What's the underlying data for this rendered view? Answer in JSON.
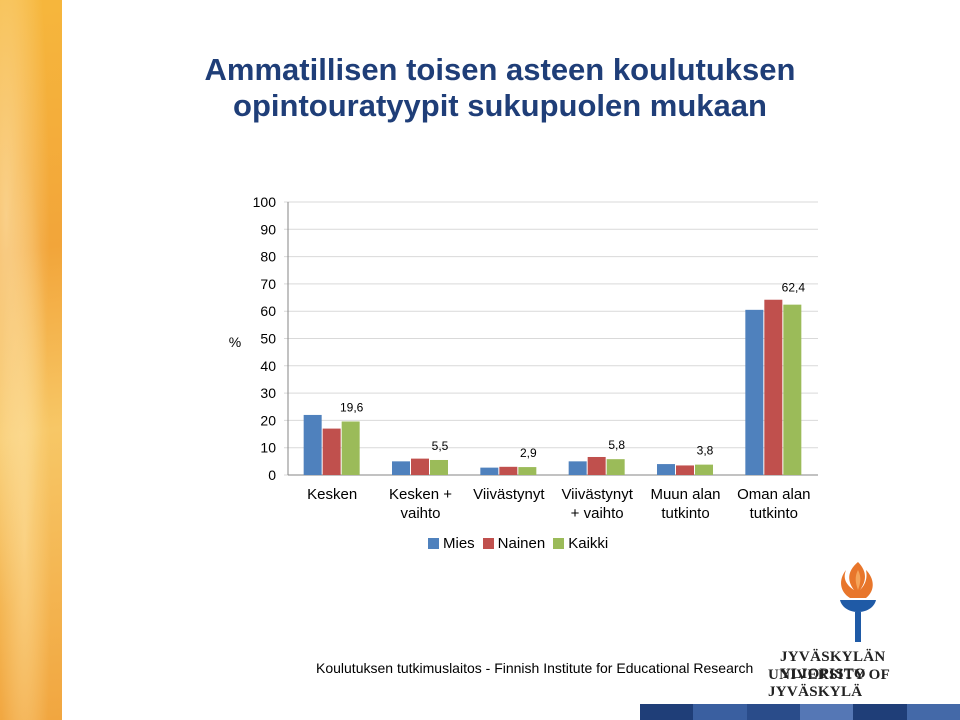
{
  "title_lines": [
    "Ammatillisen toisen asteen koulutuksen",
    "opintouratyypit sukupuolen mukaan"
  ],
  "footer": "Koulutuksen tutkimuslaitos - Finnish Institute for Educational Research",
  "logo": {
    "line1": "JYVÄSKYLÄN YLIOPISTO",
    "line2": "UNIVERSITY OF JYVÄSKYLÄ",
    "icon": "torch-icon"
  },
  "colors": {
    "mies": "#4f81bd",
    "nainen": "#c0504d",
    "kaikki": "#9bbb59",
    "title": "#1f3e78"
  },
  "chart_data": {
    "type": "bar",
    "ylabel": "%",
    "ylim": [
      0,
      100
    ],
    "yticks": [
      0,
      10,
      20,
      30,
      40,
      50,
      60,
      70,
      80,
      90,
      100
    ],
    "grid": true,
    "legend_position": "bottom",
    "categories": [
      [
        "Kesken"
      ],
      [
        "Kesken +",
        "vaihto"
      ],
      [
        "Viivästynyt"
      ],
      [
        "Viivästynyt",
        "+ vaihto"
      ],
      [
        "Muun alan",
        "tutkinto"
      ],
      [
        "Oman alan",
        "tutkinto"
      ]
    ],
    "series": [
      {
        "name": "Mies",
        "color": "#4f81bd",
        "values": [
          22.0,
          5.0,
          2.7,
          5.0,
          4.0,
          60.5
        ]
      },
      {
        "name": "Nainen",
        "color": "#c0504d",
        "values": [
          17.0,
          6.0,
          3.0,
          6.6,
          3.5,
          64.2
        ]
      },
      {
        "name": "Kaikki",
        "color": "#9bbb59",
        "values": [
          19.6,
          5.5,
          2.9,
          5.8,
          3.8,
          62.4
        ]
      }
    ],
    "data_labels": [
      "19,6",
      "5,5",
      "2,9",
      "5,8",
      "3,8",
      "62,4"
    ]
  }
}
